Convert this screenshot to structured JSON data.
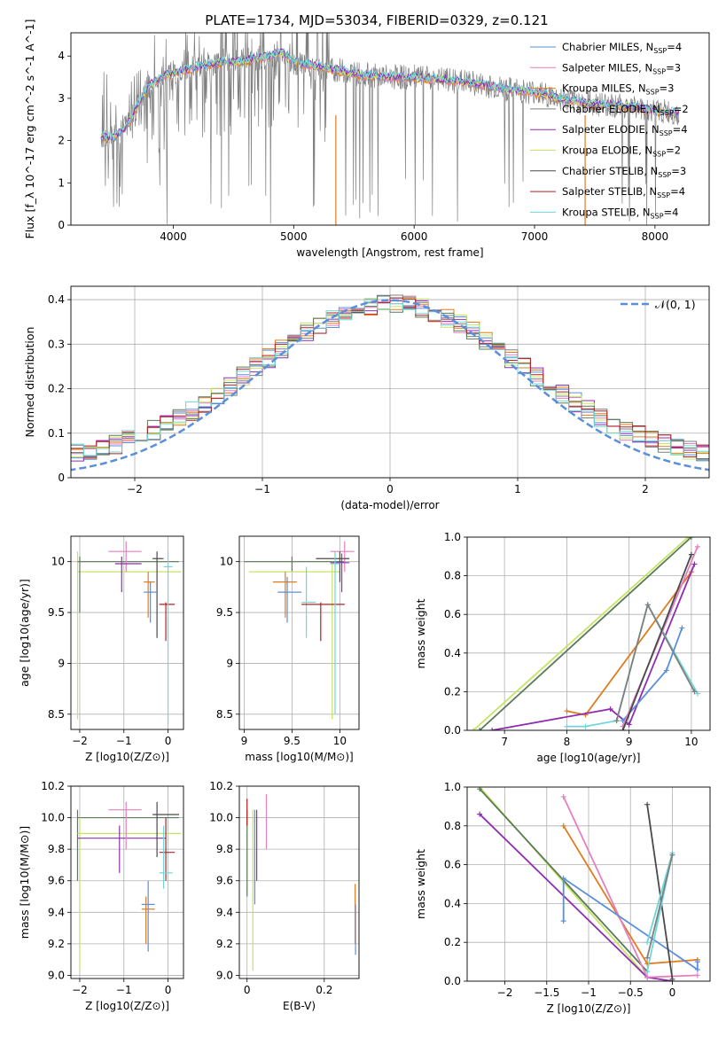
{
  "figure_title": "PLATE=1734, MJD=53034, FIBERID=0329, z=0.121",
  "colors": {
    "blue": "#5b8fd9",
    "pink": "#e57fbf",
    "orange": "#e07b1f",
    "gray": "#7f7f7f",
    "purple": "#8e2fb0",
    "lime": "#c5e463",
    "dark": "#4a4a4a",
    "red": "#b22222",
    "cyan": "#6fd6d9",
    "dkgreen": "#5a7a5a"
  },
  "legend": [
    {
      "base": "Chabrier MILES, N",
      "sub": "SSP",
      "tail": "=4",
      "color": "blue"
    },
    {
      "base": "Salpeter MILES, N",
      "sub": "SSP",
      "tail": "=3",
      "color": "pink"
    },
    {
      "base": "Kroupa MILES, N",
      "sub": "SSP",
      "tail": "=3",
      "color": "orange"
    },
    {
      "base": "Chabrier ELODIE, N",
      "sub": "SSP",
      "tail": "=2",
      "color": "gray"
    },
    {
      "base": "Salpeter ELODIE, N",
      "sub": "SSP",
      "tail": "=4",
      "color": "purple"
    },
    {
      "base": "Kroupa ELODIE, N",
      "sub": "SSP",
      "tail": "=2",
      "color": "lime"
    },
    {
      "base": "Chabrier STELIB, N",
      "sub": "SSP",
      "tail": "=3",
      "color": "dark"
    },
    {
      "base": "Salpeter STELIB, N",
      "sub": "SSP",
      "tail": "=4",
      "color": "red"
    },
    {
      "base": "Kroupa STELIB, N",
      "sub": "SSP",
      "tail": "=4",
      "color": "cyan"
    }
  ],
  "chart_data": [
    {
      "type": "line",
      "id": "spectrum",
      "xlabel": "wavelength [Angstrom, rest frame]",
      "ylabel": "Flux [f_λ 10^-17 erg cm^-2 s^-1 A^-1]",
      "xlim": [
        3150,
        8450
      ],
      "ylim": [
        0,
        4.55
      ],
      "xticks": [
        4000,
        5000,
        6000,
        7000,
        8000
      ],
      "yticks": [
        0,
        1,
        2,
        3,
        4
      ],
      "continuum_x": [
        3400,
        3500,
        3600,
        3700,
        3800,
        3900,
        4000,
        4200,
        4400,
        4600,
        4800,
        4900,
        5000,
        5200,
        5400,
        5600,
        5800,
        6000,
        6200,
        6400,
        6600,
        6800,
        7000,
        7200,
        7400,
        7600,
        7800,
        8000,
        8200
      ],
      "continuum_y": [
        2.1,
        2.05,
        2.3,
        2.8,
        3.3,
        3.5,
        3.6,
        3.75,
        3.85,
        3.9,
        4.0,
        4.1,
        3.85,
        3.75,
        3.65,
        3.55,
        3.5,
        3.5,
        3.45,
        3.4,
        3.3,
        3.2,
        3.15,
        3.0,
        2.9,
        2.85,
        2.8,
        2.7,
        2.65
      ]
    },
    {
      "type": "bar",
      "id": "residuals",
      "xlabel": "(data-model)/error",
      "ylabel": "Normed distribution",
      "xlim": [
        -2.5,
        2.5
      ],
      "ylim": [
        0,
        0.43
      ],
      "xticks": [
        -2,
        -1,
        0,
        1,
        2
      ],
      "yticks": [
        0,
        0.1,
        0.2,
        0.3,
        0.4
      ],
      "legend_label": "N(0,1)"
    },
    {
      "type": "scatter",
      "id": "age_vs_Z",
      "xlabel": "Z [log10(Z/Z⊙)]",
      "ylabel": "age [log10(age/yr)]",
      "xlim": [
        -2.2,
        0.35
      ],
      "ylim": [
        8.35,
        10.25
      ],
      "xticks": [
        -2,
        -1,
        0
      ],
      "yticks": [
        8.5,
        9.0,
        9.5,
        10.0
      ]
    },
    {
      "type": "scatter",
      "id": "age_vs_mass",
      "xlabel": "mass [log10(M/M⊙)]",
      "ylabel": "",
      "xlim": [
        8.95,
        10.2
      ],
      "ylim": [
        8.35,
        10.25
      ],
      "xticks": [
        9.0,
        9.5,
        10.0
      ],
      "yticks": [
        8.5,
        9.0,
        9.5,
        10.0
      ]
    },
    {
      "type": "line",
      "id": "weight_vs_age",
      "xlabel": "age [log10(age/yr)]",
      "ylabel": "mass weight",
      "xlim": [
        6.4,
        10.3
      ],
      "ylim": [
        0,
        1
      ],
      "xticks": [
        7,
        8,
        9,
        10
      ],
      "yticks": [
        0,
        0.2,
        0.4,
        0.6,
        0.8,
        1.0
      ]
    },
    {
      "type": "scatter",
      "id": "mass_vs_Z",
      "xlabel": "Z [log10(Z/Z⊙)]",
      "ylabel": "mass [log10(M/M⊙)]",
      "xlim": [
        -2.2,
        0.35
      ],
      "ylim": [
        8.98,
        10.2
      ],
      "xticks": [
        -2,
        -1,
        0
      ],
      "yticks": [
        9.0,
        9.2,
        9.4,
        9.6,
        9.8,
        10.0,
        10.2
      ]
    },
    {
      "type": "scatter",
      "id": "mass_vs_EBV",
      "xlabel": "E(B-V)",
      "ylabel": "",
      "xlim": [
        -0.02,
        0.29
      ],
      "ylim": [
        8.98,
        10.2
      ],
      "xticks": [
        0.0,
        0.2
      ],
      "yticks": [
        9.0,
        9.2,
        9.4,
        9.6,
        9.8,
        10.0,
        10.2
      ]
    },
    {
      "type": "line",
      "id": "weight_vs_Z",
      "xlabel": "Z [log10(Z/Z⊙)]",
      "ylabel": "mass weight",
      "xlim": [
        -2.45,
        0.45
      ],
      "ylim": [
        0,
        1
      ],
      "xticks": [
        -2.0,
        -1.5,
        -1.0,
        -0.5,
        0.0
      ],
      "yticks": [
        0,
        0.2,
        0.4,
        0.6,
        0.8,
        1.0
      ]
    }
  ]
}
